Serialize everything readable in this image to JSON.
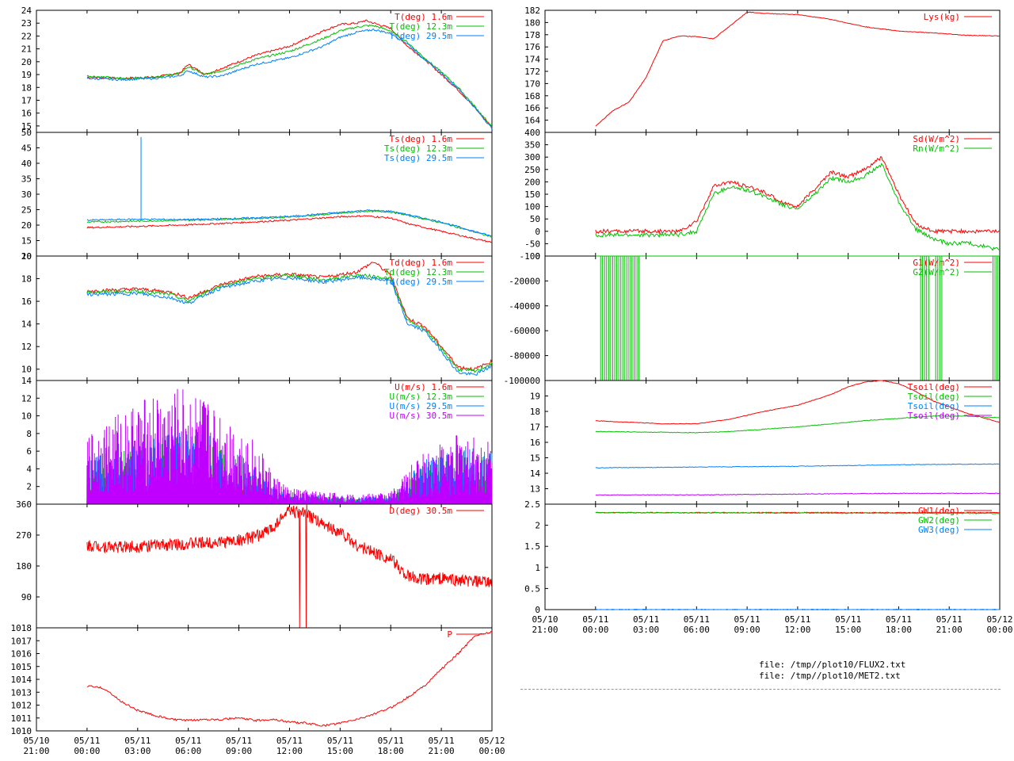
{
  "x_axis": {
    "tick_dates": [
      "05/10",
      "05/11",
      "05/11",
      "05/11",
      "05/11",
      "05/11",
      "05/11",
      "05/11",
      "05/11",
      "05/12"
    ],
    "tick_times": [
      "21:00",
      "00:00",
      "03:00",
      "06:00",
      "09:00",
      "12:00",
      "15:00",
      "18:00",
      "21:00",
      "00:00"
    ],
    "range_hours": [
      -3,
      24
    ]
  },
  "files": [
    "file: /tmp//plot10/FLUX2.txt",
    "file: /tmp//plot10/MET2.txt"
  ],
  "colors": {
    "red": "#ff0000",
    "green": "#00c000",
    "blue": "#0080ff",
    "purple": "#c000ff"
  },
  "chart_data": [
    {
      "id": "T",
      "type": "line",
      "ylim": [
        14.5,
        24
      ],
      "yticks": [
        15,
        16,
        17,
        18,
        19,
        20,
        21,
        22,
        23,
        24
      ],
      "series": [
        {
          "name": "T(deg)  1.6m",
          "color": "red",
          "x": [
            0,
            2,
            4,
            5.5,
            6,
            7,
            8,
            10,
            12,
            14,
            15,
            16,
            16.5,
            17,
            18,
            19,
            20,
            21,
            22,
            23,
            24
          ],
          "y": [
            18.8,
            18.7,
            18.8,
            19.1,
            19.8,
            19.0,
            19.5,
            20.5,
            21.2,
            22.4,
            22.9,
            23.0,
            23.2,
            23.0,
            22.6,
            21.2,
            20.2,
            19.0,
            17.8,
            16.4,
            14.9
          ]
        },
        {
          "name": "T(deg) 12.3m",
          "color": "green",
          "x": [
            0,
            2,
            4,
            5.5,
            6,
            7,
            8,
            10,
            12,
            14,
            15,
            16,
            16.5,
            17,
            18,
            19,
            20,
            21,
            22,
            23,
            24
          ],
          "y": [
            18.9,
            18.7,
            18.8,
            19.1,
            19.6,
            19.0,
            19.3,
            20.2,
            20.8,
            21.8,
            22.4,
            22.7,
            22.8,
            22.8,
            22.4,
            21.5,
            20.3,
            19.2,
            18.0,
            16.5,
            14.9
          ]
        },
        {
          "name": "T(deg) 29.5m",
          "color": "blue",
          "x": [
            0,
            2,
            4,
            5.5,
            6,
            7,
            8,
            10,
            12,
            14,
            15,
            16,
            16.5,
            17,
            18,
            19,
            20,
            21,
            22,
            23,
            24
          ],
          "y": [
            18.7,
            18.6,
            18.7,
            18.9,
            19.3,
            18.8,
            18.9,
            19.8,
            20.3,
            21.2,
            21.9,
            22.3,
            22.4,
            22.5,
            22.2,
            21.4,
            20.2,
            19.1,
            17.9,
            16.4,
            14.8
          ]
        }
      ]
    },
    {
      "id": "Ts",
      "type": "line",
      "ylim": [
        10,
        50
      ],
      "yticks": [
        10,
        15,
        20,
        25,
        30,
        35,
        40,
        45,
        50
      ],
      "series": [
        {
          "name": "Ts(deg)  1.6m",
          "color": "red",
          "x": [
            0,
            3,
            6,
            9,
            12,
            15,
            16.5,
            18,
            19,
            21,
            24
          ],
          "y": [
            19.2,
            19.6,
            20.1,
            20.8,
            21.6,
            22.7,
            23.0,
            22.3,
            20.5,
            18.0,
            14.4
          ]
        },
        {
          "name": "Ts(deg) 12.3m",
          "color": "green",
          "x": [
            0,
            3,
            6,
            9,
            12,
            15,
            16.5,
            18,
            19,
            21,
            24
          ],
          "y": [
            21.0,
            21.3,
            21.6,
            22.0,
            22.6,
            23.8,
            24.5,
            24.3,
            23.2,
            20.8,
            16.2
          ]
        },
        {
          "name": "Ts(deg) 29.5m",
          "color": "blue",
          "x": [
            0,
            3,
            6,
            9,
            12,
            15,
            16.5,
            18,
            19,
            21,
            24
          ],
          "y": [
            21.6,
            21.9,
            21.8,
            22.2,
            22.8,
            24.1,
            24.8,
            24.5,
            23.4,
            21.0,
            16.4
          ]
        }
      ]
    },
    {
      "id": "Td",
      "type": "line",
      "ylim": [
        9,
        20
      ],
      "yticks": [
        10,
        12,
        14,
        16,
        18,
        20
      ],
      "series": [
        {
          "name": "Td(deg)  1.6m",
          "color": "red",
          "x": [
            0,
            3,
            5,
            6,
            7,
            8,
            10,
            12,
            14,
            16,
            17,
            18,
            19,
            20,
            21,
            22,
            23,
            24
          ],
          "y": [
            16.9,
            17.1,
            16.8,
            16.3,
            16.9,
            17.5,
            18.2,
            18.4,
            18.1,
            18.6,
            19.5,
            18.3,
            14.5,
            13.8,
            12.0,
            10.2,
            10.0,
            10.7
          ]
        },
        {
          "name": "Td(deg) 12.3m",
          "color": "green",
          "x": [
            0,
            3,
            5,
            6,
            7,
            8,
            10,
            12,
            14,
            16,
            17,
            18,
            19,
            20,
            21,
            22,
            23,
            24
          ],
          "y": [
            16.8,
            16.9,
            16.6,
            16.0,
            16.8,
            17.4,
            18.0,
            18.3,
            17.9,
            18.3,
            18.2,
            18.0,
            14.3,
            13.6,
            11.8,
            10.0,
            9.8,
            10.5
          ]
        },
        {
          "name": "Td(deg) 29.5m",
          "color": "blue",
          "x": [
            0,
            3,
            5,
            6,
            7,
            8,
            10,
            12,
            14,
            16,
            17,
            18,
            19,
            20,
            21,
            22,
            23,
            24
          ],
          "y": [
            16.6,
            16.7,
            16.3,
            15.8,
            16.6,
            17.2,
            17.8,
            18.1,
            17.7,
            18.1,
            18.0,
            17.8,
            14.0,
            13.4,
            11.6,
            9.7,
            9.5,
            10.3
          ]
        }
      ]
    },
    {
      "id": "U",
      "type": "line",
      "ylim": [
        0,
        14
      ],
      "yticks": [
        2,
        4,
        6,
        8,
        10,
        12,
        14
      ],
      "series": [
        {
          "name": "U(m/s)  1.6m",
          "color": "red",
          "x": [
            0,
            2,
            4,
            6,
            8,
            10,
            11,
            12,
            14,
            16,
            18,
            20,
            22,
            24
          ],
          "y": [
            1.5,
            1.8,
            2.0,
            2.2,
            1.8,
            1.2,
            0.6,
            0.4,
            0.3,
            0.3,
            0.3,
            1.0,
            1.4,
            1.2
          ]
        },
        {
          "name": "U(m/s) 12.3m",
          "color": "green",
          "x": [
            0,
            2,
            4,
            6,
            8,
            10,
            11,
            12,
            14,
            16,
            18,
            20,
            22,
            24
          ],
          "y": [
            2.5,
            3.5,
            4.0,
            4.5,
            3.5,
            2.0,
            1.0,
            0.6,
            0.5,
            0.4,
            0.5,
            2.5,
            3.5,
            3.0
          ]
        },
        {
          "name": "U(m/s) 29.5m",
          "color": "blue",
          "x": [
            0,
            2,
            4,
            6,
            8,
            10,
            11,
            12,
            14,
            16,
            18,
            20,
            22,
            24
          ],
          "y": [
            3.0,
            4.0,
            4.5,
            5.0,
            4.0,
            2.5,
            1.2,
            0.8,
            0.6,
            0.5,
            0.6,
            2.8,
            3.8,
            3.2
          ]
        },
        {
          "name": "U(m/s) 30.5m",
          "color": "purple",
          "x": [
            0,
            2,
            4,
            6,
            8,
            10,
            11,
            12,
            14,
            16,
            18,
            20,
            22,
            24
          ],
          "y": [
            4.5,
            6.0,
            7.0,
            7.5,
            6.0,
            4.0,
            2.0,
            1.0,
            0.8,
            0.6,
            0.8,
            3.5,
            4.5,
            4.0
          ]
        }
      ]
    },
    {
      "id": "D",
      "type": "line",
      "ylim": [
        0,
        360
      ],
      "yticks": [
        90,
        180,
        270,
        360
      ],
      "series": [
        {
          "name": "D(deg)  30.5m",
          "color": "red",
          "x": [
            0,
            2,
            4,
            6,
            8,
            9,
            10,
            11,
            11.5,
            12,
            13,
            14,
            15,
            16,
            17,
            18,
            19,
            20,
            21,
            22,
            23,
            24
          ],
          "y": [
            240,
            235,
            240,
            245,
            250,
            255,
            265,
            290,
            320,
            340,
            330,
            300,
            280,
            240,
            220,
            200,
            150,
            140,
            145,
            138,
            135,
            130
          ]
        }
      ]
    },
    {
      "id": "P",
      "type": "line",
      "ylim": [
        1010,
        1018
      ],
      "yticks": [
        1010,
        1011,
        1012,
        1013,
        1014,
        1015,
        1016,
        1017,
        1018
      ],
      "series": [
        {
          "name": "P",
          "color": "red",
          "x": [
            0,
            1,
            2,
            3,
            4,
            5,
            6,
            7,
            8,
            9,
            10,
            11,
            12,
            13,
            14,
            15,
            16,
            17,
            18,
            19,
            20,
            21,
            22,
            23,
            24
          ],
          "y": [
            1013.5,
            1013.3,
            1012.3,
            1011.6,
            1011.2,
            1010.9,
            1010.8,
            1010.9,
            1010.9,
            1011.0,
            1010.8,
            1010.9,
            1010.7,
            1010.6,
            1010.4,
            1010.6,
            1010.9,
            1011.3,
            1011.8,
            1012.6,
            1013.5,
            1014.8,
            1016.0,
            1017.4,
            1017.7
          ]
        }
      ]
    },
    {
      "id": "Lys",
      "type": "line",
      "ylim": [
        162,
        182
      ],
      "yticks": [
        164,
        166,
        168,
        170,
        172,
        174,
        176,
        178,
        180,
        182
      ],
      "series": [
        {
          "name": "Lys(kg)",
          "color": "red",
          "x": [
            0,
            1,
            2,
            3,
            4,
            5,
            6,
            7,
            8,
            9,
            10,
            12,
            14,
            16,
            18,
            20,
            22,
            24
          ],
          "y": [
            163,
            165.5,
            167,
            171,
            177,
            177.8,
            177.7,
            177.3,
            179.5,
            181.7,
            181.5,
            181.3,
            180.5,
            179.3,
            178.6,
            178.3,
            177.9,
            177.8
          ]
        }
      ]
    },
    {
      "id": "Rad",
      "type": "line",
      "ylim": [
        -100,
        400
      ],
      "yticks": [
        -100,
        -50,
        0,
        50,
        100,
        150,
        200,
        250,
        300,
        350,
        400
      ],
      "series": [
        {
          "name": "Sd(W/m^2)",
          "color": "red",
          "x": [
            0,
            2,
            4,
            5,
            6,
            7,
            8,
            9,
            10,
            11,
            12,
            13,
            14,
            15,
            16,
            17,
            18,
            19,
            20,
            21,
            22,
            23,
            24
          ],
          "y": [
            0,
            0,
            0,
            0,
            40,
            180,
            200,
            180,
            160,
            120,
            100,
            170,
            240,
            220,
            250,
            300,
            150,
            30,
            0,
            0,
            0,
            0,
            0
          ]
        },
        {
          "name": "Rn(W/m^2)",
          "color": "green",
          "x": [
            0,
            2,
            4,
            5,
            6,
            7,
            8,
            9,
            10,
            11,
            12,
            13,
            14,
            15,
            16,
            17,
            18,
            19,
            20,
            21,
            22,
            23,
            24
          ],
          "y": [
            -15,
            -15,
            -15,
            -13,
            0,
            150,
            180,
            165,
            145,
            110,
            90,
            150,
            215,
            200,
            225,
            270,
            120,
            10,
            -30,
            -50,
            -45,
            -60,
            -75
          ]
        }
      ]
    },
    {
      "id": "G",
      "type": "line",
      "ylim": [
        -100000,
        0
      ],
      "yticks": [
        -100000,
        -80000,
        -60000,
        -40000,
        -20000,
        0
      ],
      "series": [
        {
          "name": "G1(W/m^2)",
          "color": "red",
          "x": [
            0,
            24
          ],
          "y": [
            0,
            0
          ]
        },
        {
          "name": "G2(W/m^2)",
          "color": "green",
          "x": [
            0,
            2.7,
            19,
            24
          ],
          "y": [
            0,
            0,
            0,
            0
          ]
        }
      ]
    },
    {
      "id": "Tsoil",
      "type": "line",
      "ylim": [
        12,
        20
      ],
      "yticks": [
        13,
        14,
        15,
        16,
        17,
        18,
        19
      ],
      "series": [
        {
          "name": "Tsoil(deg)",
          "color": "red",
          "x": [
            0,
            2,
            4,
            6,
            8,
            10,
            12,
            14,
            15,
            16,
            17,
            18,
            19,
            20,
            22,
            24
          ],
          "y": [
            17.4,
            17.3,
            17.2,
            17.2,
            17.5,
            18.0,
            18.4,
            19.1,
            19.6,
            19.9,
            20.0,
            19.8,
            19.3,
            18.7,
            17.9,
            17.3
          ]
        },
        {
          "name": "Tsoil(deg)",
          "color": "green",
          "x": [
            0,
            4,
            6,
            8,
            12,
            16,
            20,
            22,
            24
          ],
          "y": [
            16.7,
            16.65,
            16.62,
            16.7,
            17.0,
            17.4,
            17.7,
            17.7,
            17.6
          ]
        },
        {
          "name": "Tsoil(deg)",
          "color": "blue",
          "x": [
            0,
            6,
            12,
            18,
            24
          ],
          "y": [
            14.35,
            14.4,
            14.45,
            14.55,
            14.6
          ]
        },
        {
          "name": "Tsoil(deg)",
          "color": "purple",
          "x": [
            0,
            6,
            12,
            18,
            24
          ],
          "y": [
            12.6,
            12.6,
            12.65,
            12.7,
            12.7
          ]
        }
      ]
    },
    {
      "id": "GW",
      "type": "line",
      "ylim": [
        0,
        2.5
      ],
      "yticks": [
        0,
        0.5,
        1,
        1.5,
        2,
        2.5
      ],
      "series": [
        {
          "name": "GW1(deg)",
          "color": "red",
          "x": [
            0,
            24
          ],
          "y": [
            2.3,
            2.3
          ]
        },
        {
          "name": "GW2(deg)",
          "color": "green",
          "x": [
            0,
            24
          ],
          "y": [
            2.3,
            2.28
          ]
        },
        {
          "name": "GW3(deg)",
          "color": "blue",
          "x": [
            0,
            24
          ],
          "y": [
            0,
            0
          ]
        }
      ]
    }
  ]
}
